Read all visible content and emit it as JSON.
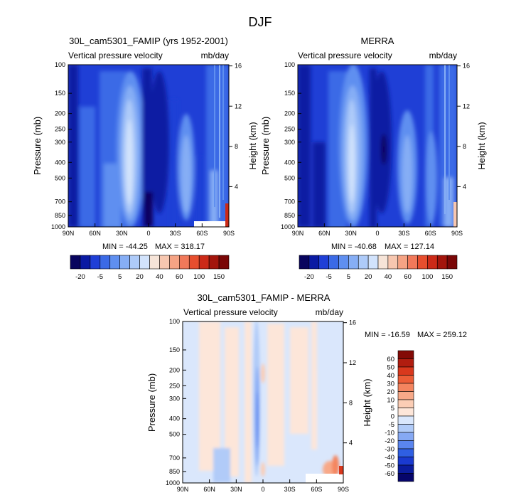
{
  "figure": {
    "title": "DJF"
  },
  "colors": {
    "level_colors": [
      "#08045e",
      "#0a1aa3",
      "#1f3fd6",
      "#3b6ae6",
      "#5f8ff0",
      "#86aef5",
      "#aecbf9",
      "#d2e3fc",
      "#f6e4d8",
      "#f7c7b0",
      "#f5a384",
      "#f1795a",
      "#e74e2e",
      "#cc2a18",
      "#a3150c",
      "#7a0707"
    ],
    "diff_colors": [
      "#06056b",
      "#0b1c9e",
      "#1a3ad0",
      "#2f5fe3",
      "#5a85ef",
      "#86a9f4",
      "#b1cbf8",
      "#dae7fc",
      "#fde6d9",
      "#fbcdb5",
      "#f8a988",
      "#f4855f",
      "#ec5d37",
      "#d9381d",
      "#b11d10",
      "#830a06"
    ]
  },
  "chart_data": [
    {
      "type": "heatmap",
      "panel": "model",
      "title": "30L_cam5301_FAMIP (yrs 1952-2001)",
      "left_label": "Vertical pressure velocity",
      "right_label": "mb/day",
      "ylabel": "Pressure (mb)",
      "y2label": "Height (km)",
      "x_ticks": [
        "90N",
        "60N",
        "30N",
        "0",
        "30S",
        "60S",
        "90S"
      ],
      "y_ticks": [
        "100",
        "150",
        "200",
        "250",
        "300",
        "400",
        "500",
        "700",
        "850",
        "1000"
      ],
      "y2_ticks": [
        "16",
        "12",
        "8",
        "4"
      ],
      "min_label": "MIN = -44.25",
      "max_label": "MAX = 318.17",
      "levels": [
        -20,
        -5,
        5,
        20,
        40,
        60,
        100,
        150
      ],
      "level_tick_labels": [
        "-20",
        "-5",
        "5",
        "20",
        "40",
        "60",
        "100",
        "150"
      ]
    },
    {
      "type": "heatmap",
      "panel": "obs",
      "title": "MERRA",
      "left_label": "Vertical pressure velocity",
      "right_label": "mb/day",
      "ylabel": "Pressure (mb)",
      "y2label": "Height (km)",
      "x_ticks": [
        "90N",
        "60N",
        "30N",
        "0",
        "30S",
        "60S",
        "90S"
      ],
      "y_ticks": [
        "100",
        "150",
        "200",
        "250",
        "300",
        "400",
        "500",
        "700",
        "850",
        "1000"
      ],
      "y2_ticks": [
        "16",
        "12",
        "8",
        "4"
      ],
      "min_label": "MIN = -40.68",
      "max_label": "MAX = 127.14",
      "levels": [
        -20,
        -5,
        5,
        20,
        40,
        60,
        100,
        150
      ],
      "level_tick_labels": [
        "-20",
        "-5",
        "5",
        "20",
        "40",
        "60",
        "100",
        "150"
      ]
    },
    {
      "type": "heatmap",
      "panel": "difference",
      "title": "30L_cam5301_FAMIP - MERRA",
      "left_label": "Vertical pressure velocity",
      "right_label": "mb/day",
      "ylabel": "Pressure (mb)",
      "y2label": "Height (km)",
      "x_ticks": [
        "90N",
        "60N",
        "30N",
        "0",
        "30S",
        "60S",
        "90S"
      ],
      "y_ticks": [
        "100",
        "150",
        "200",
        "250",
        "300",
        "400",
        "500",
        "700",
        "850",
        "1000"
      ],
      "y2_ticks": [
        "16",
        "12",
        "8",
        "4"
      ],
      "min_label": "MIN = -16.59",
      "max_label": "MAX = 259.12",
      "levels": [
        60,
        50,
        40,
        30,
        20,
        10,
        5,
        0,
        -5,
        -10,
        -20,
        -30,
        -40,
        -50,
        -60
      ],
      "level_tick_labels": [
        "60",
        "50",
        "40",
        "30",
        "20",
        "10",
        "5",
        "0",
        "-5",
        "-10",
        "-20",
        "-30",
        "-40",
        "-50",
        "-60"
      ]
    }
  ]
}
